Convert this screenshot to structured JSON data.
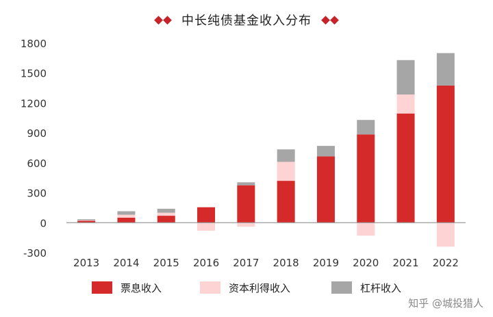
{
  "chart_data": {
    "type": "bar",
    "stacked": true,
    "title": "中长纯债基金收入分布",
    "categories": [
      "2013",
      "2014",
      "2015",
      "2016",
      "2017",
      "2018",
      "2019",
      "2020",
      "2021",
      "2022"
    ],
    "ylim": [
      -300,
      1800
    ],
    "yticks": [
      "1800",
      "1500",
      "1200",
      "900",
      "600",
      "300",
      "0",
      "-300"
    ],
    "ytick_values": [
      1800,
      1500,
      1200,
      900,
      600,
      300,
      0,
      -300
    ],
    "grid": false,
    "legend_position": "bottom",
    "series": [
      {
        "name": "票息收入",
        "color": "#d42a2a",
        "values": [
          20,
          50,
          70,
          155,
          375,
          420,
          665,
          885,
          1095,
          1375
        ]
      },
      {
        "name": "资本利得收入",
        "color": "#fdd3d3",
        "values": [
          5,
          30,
          30,
          -80,
          -40,
          190,
          0,
          -130,
          190,
          -240
        ]
      },
      {
        "name": "杠杆收入",
        "color": "#a6a6a6",
        "values": [
          10,
          35,
          40,
          0,
          30,
          125,
          105,
          145,
          345,
          325
        ]
      }
    ]
  },
  "watermark": "知乎 @城投猎人"
}
